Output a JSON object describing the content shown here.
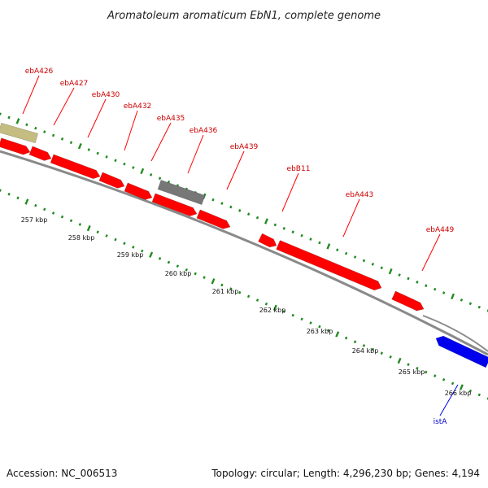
{
  "title": "Aromatoleum aromaticum EbN1, complete genome",
  "footer": {
    "accession": "Accession: NC_006513",
    "summary": "Topology: circular; Length: 4,296,230 bp; Genes: 4,194"
  },
  "colors": {
    "forward_gene": "#ff0000",
    "forward_gene_label": "#cc0000",
    "reverse_gene": "#0000ee",
    "reverse_gene_label": "#0000cc",
    "pseudo_gene": "#777777",
    "rna_feature": "#c4bc80",
    "backbone": "#8a8a8a",
    "tick": "#228b22"
  },
  "scale_labels": [
    "257 kbp",
    "258 kbp",
    "259 kbp",
    "260 kbp",
    "261 kbp",
    "262 kbp",
    "263 kbp",
    "264 kbp",
    "265 kbp",
    "266 kbp"
  ],
  "gene_labels": [
    {
      "name": "ebA426",
      "strand": "forward"
    },
    {
      "name": "ebA427",
      "strand": "forward"
    },
    {
      "name": "ebA430",
      "strand": "forward"
    },
    {
      "name": "ebA432",
      "strand": "forward"
    },
    {
      "name": "ebA435",
      "strand": "forward"
    },
    {
      "name": "ebA436",
      "strand": "forward"
    },
    {
      "name": "ebA439",
      "strand": "forward"
    },
    {
      "name": "ebB11",
      "strand": "forward"
    },
    {
      "name": "ebA443",
      "strand": "forward"
    },
    {
      "name": "ebA449",
      "strand": "forward"
    },
    {
      "name": "istA",
      "strand": "reverse"
    }
  ]
}
